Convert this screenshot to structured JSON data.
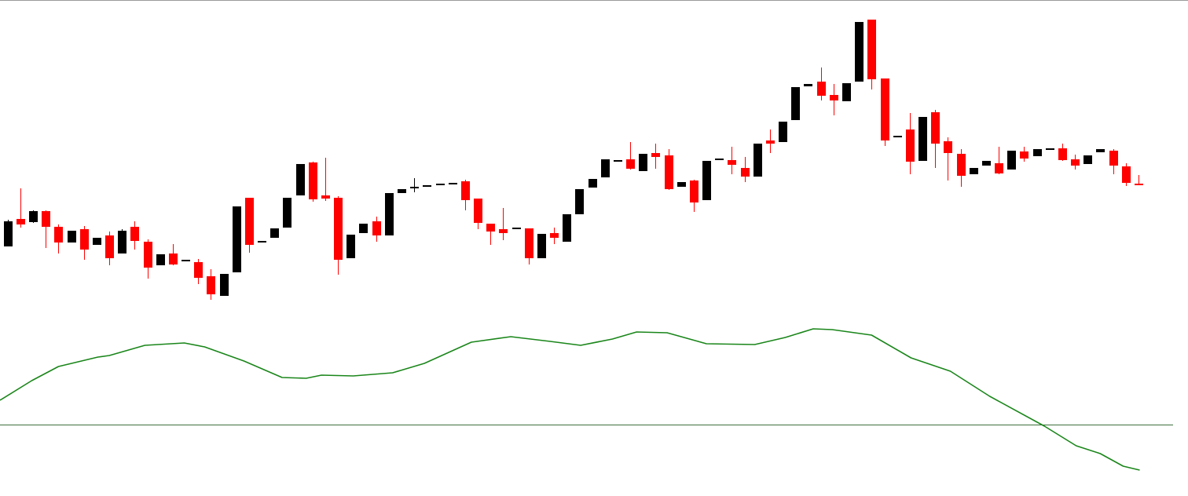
{
  "chart_data": [
    {
      "type": "candlestick",
      "up_color": "#000000",
      "down_color": "#ff0000",
      "xlim": [
        -0.6,
        92.9
      ],
      "ylim": [
        0,
        400
      ],
      "open": [
        86,
        121,
        117,
        131,
        111,
        91,
        108,
        88,
        100,
        77,
        111,
        92,
        62,
        77,
        67,
        66,
        48,
        23,
        53,
        148,
        91,
        97,
        110,
        151,
        193,
        151,
        148,
        71,
        103,
        118,
        100,
        154,
        162,
        162,
        165,
        166,
        169,
        147,
        115,
        108,
        109,
        109,
        71,
        103,
        92,
        127,
        161,
        174,
        195,
        197,
        182,
        205,
        202,
        162,
        170,
        145,
        197,
        196,
        186,
        175,
        221,
        219,
        247,
        290,
        296,
        279,
        271,
        296,
        375,
        300,
        225,
        235,
        195,
        257,
        220,
        204,
        178,
        189,
        192,
        184,
        207,
        201,
        209,
        211,
        197,
        191,
        206,
        208,
        188,
        166
      ],
      "high": [
        120,
        160,
        132,
        132,
        114,
        106,
        112,
        97,
        105,
        108,
        118,
        95,
        76,
        89,
        69,
        70,
        57,
        51,
        137,
        148,
        93,
        109,
        148,
        191,
        194,
        199,
        150,
        101,
        115,
        124,
        154,
        159,
        173,
        164,
        166,
        167,
        171,
        147,
        115,
        135,
        110,
        109,
        102,
        110,
        127,
        159,
        172,
        197,
        196,
        219,
        204,
        217,
        210,
        168,
        171,
        195,
        198,
        213,
        200,
        217,
        235,
        245,
        289,
        293,
        314,
        293,
        294,
        372,
        375,
        300,
        227,
        256,
        251,
        260,
        225,
        210,
        186,
        195,
        213,
        208,
        213,
        210,
        211,
        217,
        203,
        202,
        210,
        210,
        192,
        177
      ],
      "low": [
        86,
        110,
        116,
        84,
        77,
        91,
        69,
        88,
        62,
        77,
        82,
        45,
        62,
        62,
        67,
        38,
        18,
        23,
        53,
        78,
        91,
        97,
        110,
        151,
        143,
        144,
        50,
        71,
        103,
        92,
        100,
        154,
        155,
        162,
        165,
        166,
        132,
        108,
        88,
        94,
        109,
        63,
        71,
        89,
        92,
        127,
        161,
        174,
        195,
        184,
        182,
        185,
        158,
        162,
        130,
        145,
        197,
        178,
        168,
        175,
        205,
        219,
        247,
        290,
        272,
        253,
        271,
        296,
        286,
        214,
        225,
        178,
        195,
        186,
        170,
        162,
        178,
        189,
        178,
        184,
        194,
        201,
        209,
        195,
        184,
        191,
        206,
        178,
        163,
        165
      ],
      "close": [
        118,
        114,
        131,
        111,
        91,
        106,
        82,
        97,
        71,
        106,
        93,
        59,
        76,
        63,
        69,
        46,
        25,
        51,
        137,
        88,
        93,
        109,
        148,
        191,
        146,
        147,
        69,
        101,
        115,
        100,
        154,
        159,
        162,
        164,
        166,
        167,
        145,
        116,
        105,
        103,
        110,
        71,
        102,
        97,
        127,
        159,
        172,
        197,
        196,
        185,
        204,
        200,
        159,
        168,
        142,
        195,
        198,
        190,
        175,
        217,
        217,
        245,
        289,
        293,
        278,
        272,
        294,
        372,
        299,
        221,
        227,
        194,
        251,
        217,
        205,
        176,
        186,
        195,
        179,
        208,
        198,
        210,
        211,
        196,
        189,
        202,
        210,
        189,
        167,
        165
      ]
    },
    {
      "type": "line",
      "color": "#1a861a",
      "zero_line": true,
      "zero_color": "#3d6e3d",
      "xlim": [
        -0.6,
        92.9
      ],
      "ylim": [
        -79,
        141
      ],
      "x": [
        -0.6,
        1.9,
        4.0,
        7.1,
        8.0,
        10.8,
        13.9,
        15.5,
        18.6,
        21.6,
        23.5,
        24.7,
        27.2,
        30.3,
        32.8,
        36.5,
        39.6,
        42.7,
        45.1,
        47.6,
        49.5,
        51.9,
        55.0,
        58.8,
        61.2,
        63.4,
        64.9,
        68.0,
        71.1,
        74.2,
        77.3,
        81.6,
        84.1,
        86.0,
        87.8,
        89.1
      ],
      "values": [
        31,
        56,
        74,
        86,
        88,
        101,
        104,
        99,
        81,
        60,
        59,
        63,
        62,
        66,
        78,
        105,
        112,
        106,
        101,
        109,
        118,
        117,
        103,
        102,
        111,
        122,
        121,
        114,
        85,
        68,
        36,
        -2,
        -27,
        -37,
        -53,
        -58
      ]
    }
  ]
}
